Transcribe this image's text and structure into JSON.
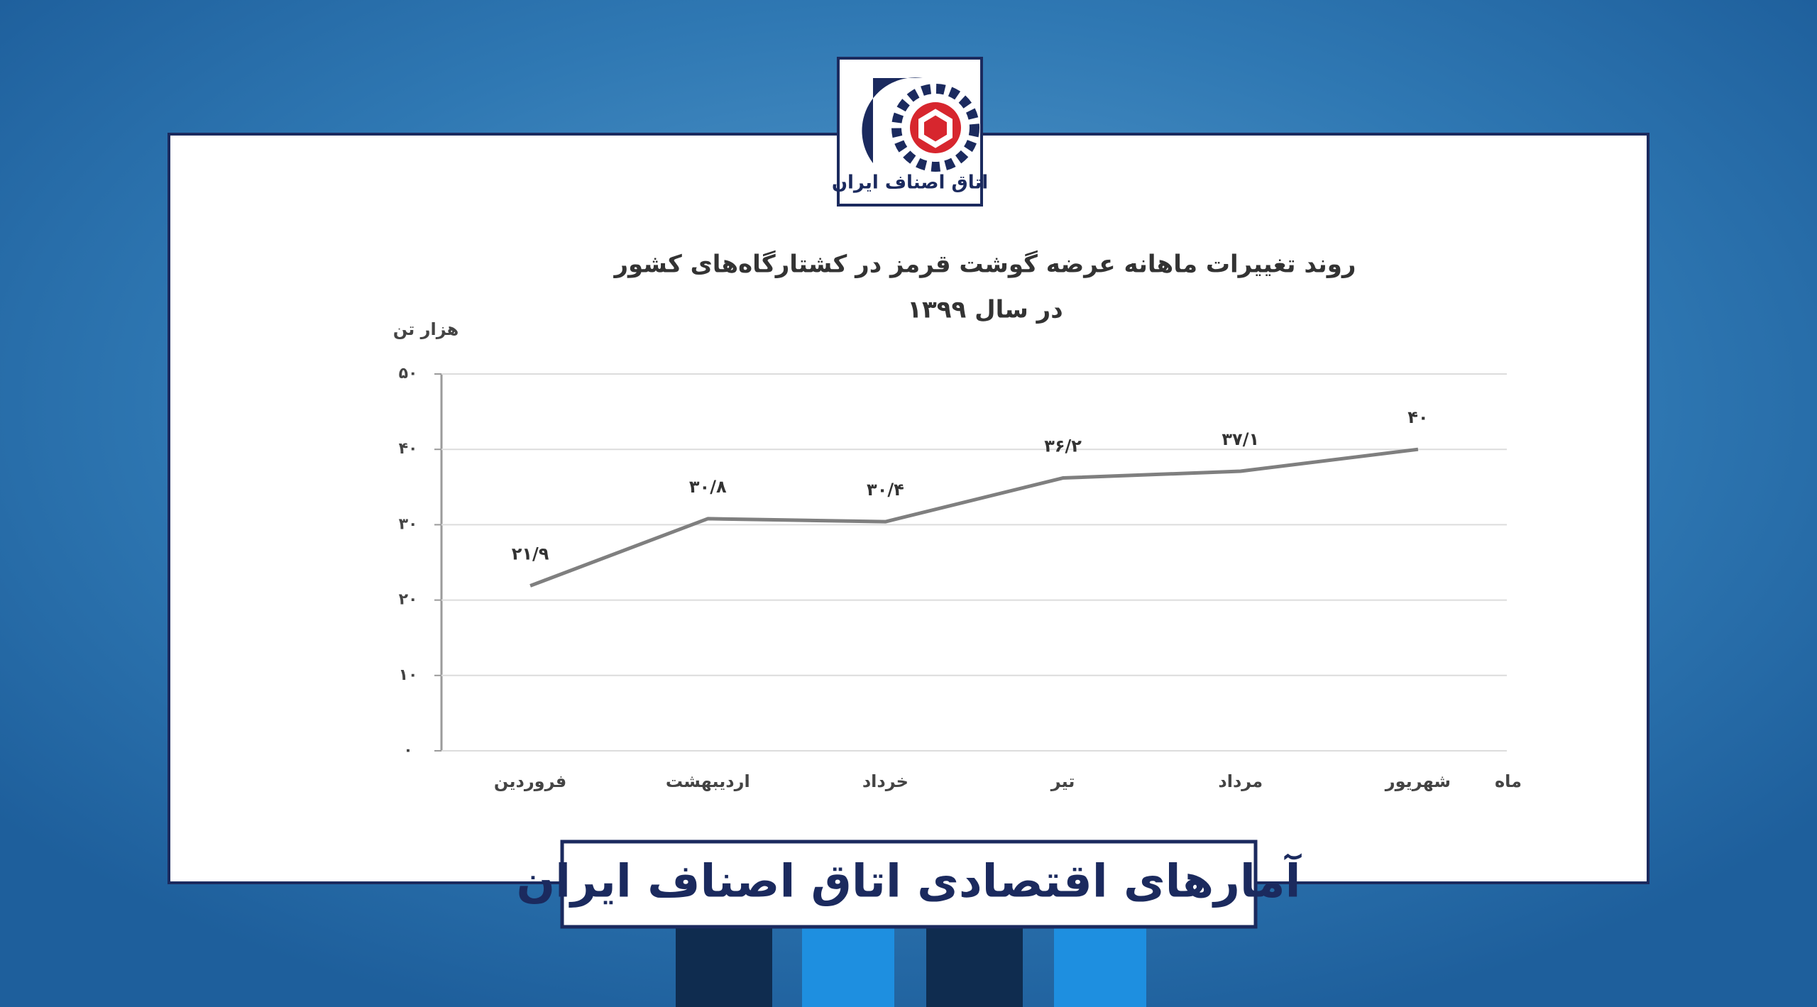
{
  "logo_text": "اتاق اصناف ایران",
  "banner": "آمارهای اقتصادی اتاق اصناف ایران",
  "chart_data": {
    "type": "line",
    "title": "روند تغییرات ماهانه عرضه گوشت قرمز در کشتارگاه‌های کشور",
    "subtitle": "در سال ۱۳۹۹",
    "y_label": "هزار تن",
    "x_label": "ماه",
    "categories": [
      "فروردین",
      "اردیبهشت",
      "خرداد",
      "تیر",
      "مرداد",
      "شهریور"
    ],
    "values": [
      21.9,
      30.8,
      30.4,
      36.2,
      37.1,
      40
    ],
    "value_labels": [
      "۲۱/۹",
      "۳۰/۸",
      "۳۰/۴",
      "۳۶/۲",
      "۳۷/۱",
      "۴۰"
    ],
    "color": "#7f7f7f",
    "ylim": [
      0,
      50
    ],
    "yticks": [
      {
        "value": 0,
        "label": "۰"
      },
      {
        "value": 10,
        "label": "۱۰"
      },
      {
        "value": 20,
        "label": "۲۰"
      },
      {
        "value": 30,
        "label": "۳۰"
      },
      {
        "value": 40,
        "label": "۴۰"
      },
      {
        "value": 50,
        "label": "۵۰"
      }
    ],
    "grid": true
  }
}
